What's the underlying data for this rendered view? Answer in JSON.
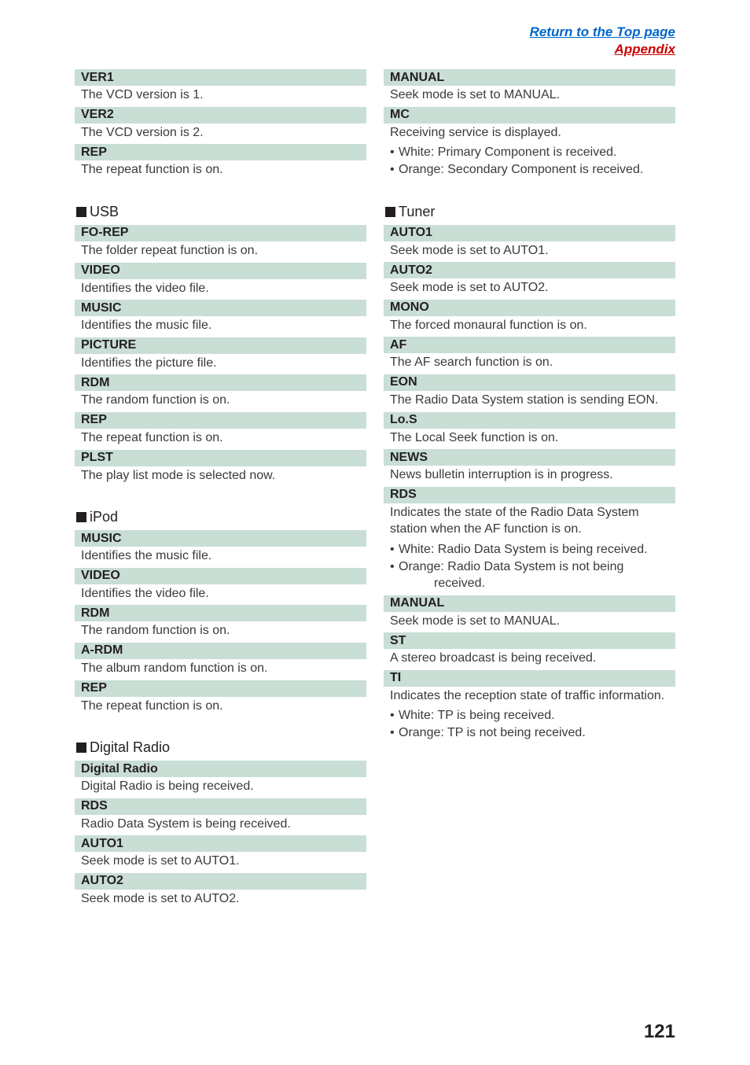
{
  "header": {
    "top_link": "Return to the Top page",
    "appendix": "Appendix"
  },
  "page_number": "121",
  "colors": {
    "term_bg": "#c9ded5",
    "link_blue": "#0066cc",
    "link_red": "#cc0000",
    "text": "#231f20"
  },
  "left": {
    "top_items": [
      {
        "term": "VER1",
        "desc": "The VCD version is 1."
      },
      {
        "term": "VER2",
        "desc": "The VCD version is 2."
      },
      {
        "term": "REP",
        "desc": "The repeat function is on."
      }
    ],
    "usb": {
      "title": "USB",
      "items": [
        {
          "term": "FO-REP",
          "desc": "The folder repeat function is on."
        },
        {
          "term": "VIDEO",
          "desc": "Identifies the video file."
        },
        {
          "term": "MUSIC",
          "desc": "Identifies the music file."
        },
        {
          "term": "PICTURE",
          "desc": "Identifies the picture file."
        },
        {
          "term": "RDM",
          "desc": "The random function is on."
        },
        {
          "term": "REP",
          "desc": "The repeat function is on."
        },
        {
          "term": "PLST",
          "desc": "The play list mode is selected now."
        }
      ]
    },
    "ipod": {
      "title": "iPod",
      "items": [
        {
          "term": "MUSIC",
          "desc": "Identifies the music file."
        },
        {
          "term": "VIDEO",
          "desc": "Identifies the video file."
        },
        {
          "term": "RDM",
          "desc": "The random function is on."
        },
        {
          "term": "A-RDM",
          "desc": "The album random function is on."
        },
        {
          "term": "REP",
          "desc": "The repeat function is on."
        }
      ]
    },
    "digital_radio": {
      "title": "Digital Radio",
      "items": [
        {
          "term": "Digital Radio",
          "desc": "Digital Radio is being received."
        },
        {
          "term": "RDS",
          "desc": "Radio Data System is being received."
        },
        {
          "term": "AUTO1",
          "desc": "Seek mode is set to AUTO1."
        },
        {
          "term": "AUTO2",
          "desc": "Seek mode is set to AUTO2."
        }
      ]
    }
  },
  "right": {
    "top_items": [
      {
        "term": "MANUAL",
        "desc": "Seek mode is set to MANUAL."
      },
      {
        "term": "MC",
        "desc": "Receiving service is displayed.",
        "bullets": [
          "White: Primary Component is received.",
          "Orange: Secondary Component is received."
        ]
      }
    ],
    "tuner": {
      "title": "Tuner",
      "items": [
        {
          "term": "AUTO1",
          "desc": "Seek mode is set to AUTO1."
        },
        {
          "term": "AUTO2",
          "desc": "Seek mode is set to AUTO2."
        },
        {
          "term": "MONO",
          "desc": "The forced monaural function is on."
        },
        {
          "term": "AF",
          "desc": "The AF search function is on."
        },
        {
          "term": "EON",
          "desc": "The Radio Data System station is sending EON."
        },
        {
          "term": "Lo.S",
          "desc": "The Local Seek function is on."
        },
        {
          "term": "NEWS",
          "desc": "News bulletin interruption is in progress."
        },
        {
          "term": "RDS",
          "desc": "Indicates the state of the Radio Data System station when the AF function is on.",
          "bullets": [
            "White: Radio Data System is being received.",
            "Orange: Radio Data System is not being"
          ],
          "bullet_indent": "received."
        },
        {
          "term": "MANUAL",
          "desc": "Seek mode is set to MANUAL."
        },
        {
          "term": "ST",
          "desc": "A stereo broadcast is being received."
        },
        {
          "term": "TI",
          "desc": "Indicates the reception state of traffic information.",
          "bullets": [
            "White: TP is being received.",
            "Orange: TP is not being received."
          ]
        }
      ]
    }
  }
}
